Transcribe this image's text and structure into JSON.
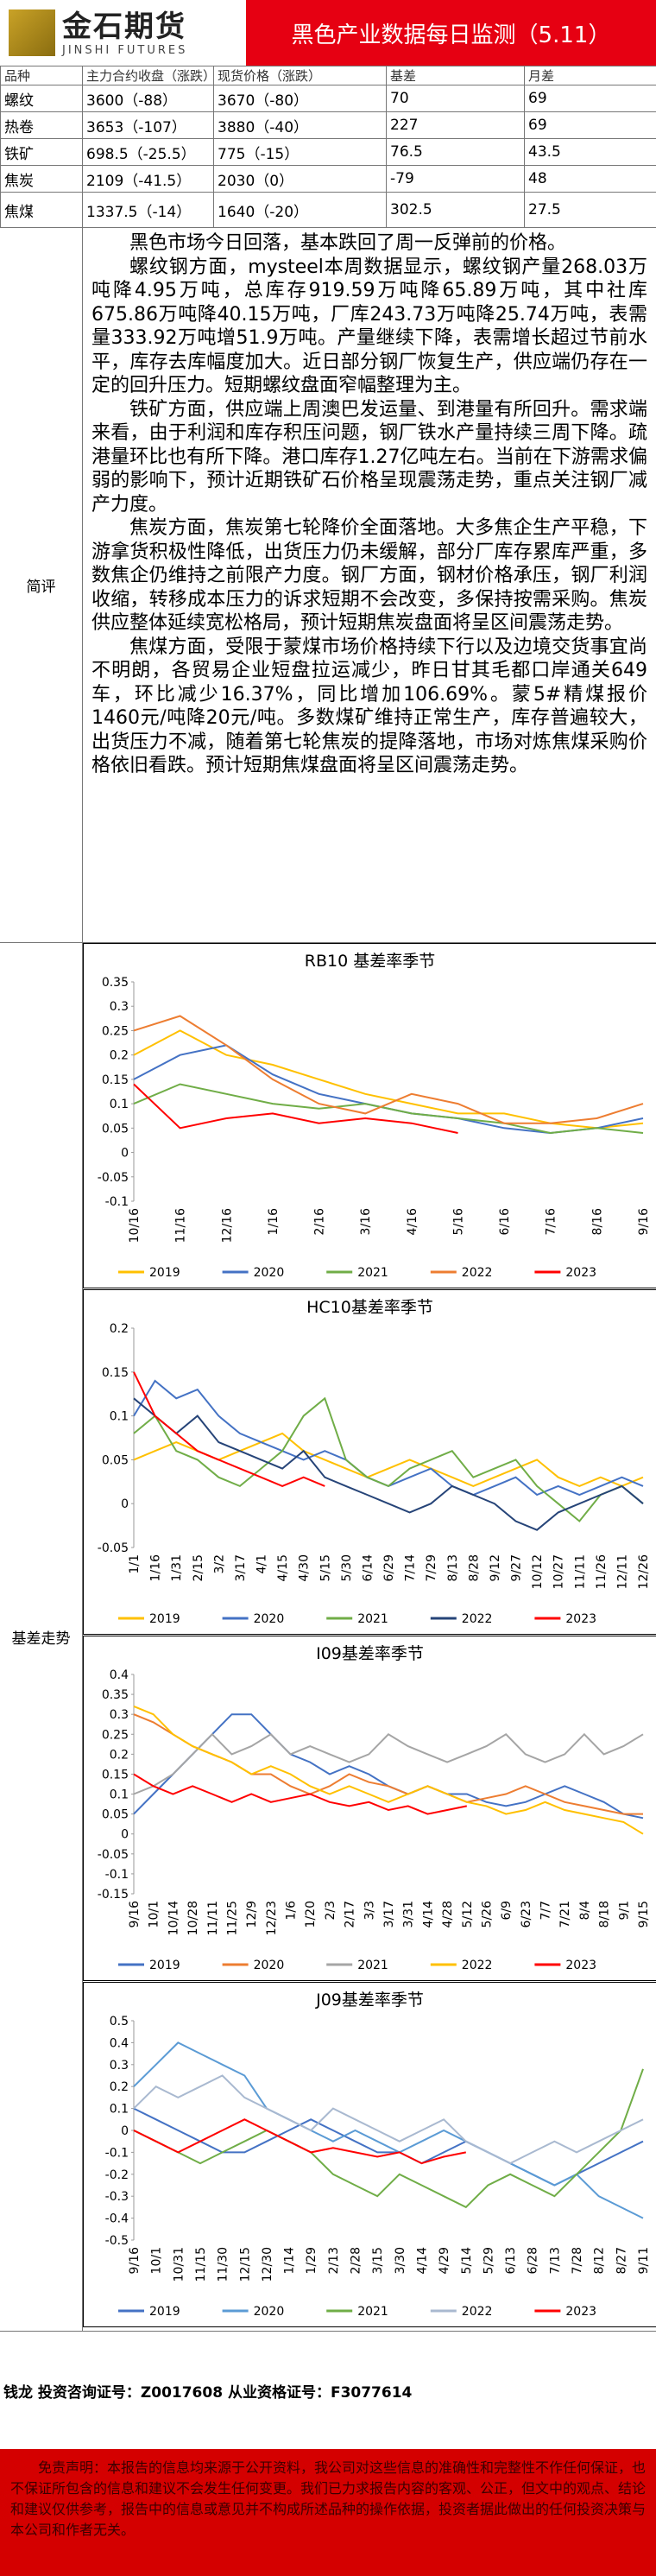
{
  "header": {
    "logo": "金石期货",
    "logo_en": "JINSHI FUTURES",
    "title": "黑色产业数据每日监测（5.11）"
  },
  "table": {
    "columns": [
      "品种",
      "主力合约收盘（涨跌）",
      "现货价格（涨跌）",
      "基差",
      "月差"
    ],
    "rows": [
      [
        "螺纹",
        "3600（-88）",
        "3670（-80）",
        "70",
        "69"
      ],
      [
        "热卷",
        "3653（-107）",
        "3880（-40）",
        "227",
        "69"
      ],
      [
        "铁矿",
        "698.5（-25.5）",
        "775（-15）",
        "76.5",
        "43.5"
      ],
      [
        "焦炭",
        "2109（-41.5）",
        "2030（0）",
        "-79",
        "48"
      ],
      [
        "焦煤",
        "1337.5（-14）",
        "1640（-20）",
        "302.5",
        "27.5"
      ]
    ]
  },
  "comment": {
    "label": "简评",
    "paragraphs": [
      "黑色市场今日回落，基本跌回了周一反弹前的价格。",
      "螺纹钢方面，mysteel本周数据显示，螺纹钢产量268.03万吨降4.95万吨，总库存919.59万吨降65.89万吨，其中社库675.86万吨降40.15万吨，厂库243.73万吨降25.74万吨，表需量333.92万吨增51.9万吨。产量继续下降，表需增长超过节前水平，库存去库幅度加大。近日部分钢厂恢复生产，供应端仍存在一定的回升压力。短期螺纹盘面窄幅整理为主。",
      "铁矿方面，供应端上周澳巴发运量、到港量有所回升。需求端来看，由于利润和库存积压问题，钢厂铁水产量持续三周下降。疏港量环比也有所下降。港口库存1.27亿吨左右。当前在下游需求偏弱的影响下，预计近期铁矿石价格呈现震荡走势，重点关注钢厂减产力度。",
      "焦炭方面，焦炭第七轮降价全面落地。大多焦企生产平稳，下游拿货积极性降低，出货压力仍未缓解，部分厂库存累库严重，多数焦企仍维持之前限产力度。钢厂方面，钢材价格承压，钢厂利润收缩，转移成本压力的诉求短期不会改变，多保持按需采购。焦炭供应整体延续宽松格局，预计短期焦炭盘面将呈区间震荡走势。",
      "焦煤方面，受限于蒙煤市场价格持续下行以及边境交货事宜尚不明朗，各贸易企业短盘拉运减少，昨日甘其毛都口岸通关649车，环比减少16.37%，同比增加106.69%。蒙5#精煤报价1460元/吨降20元/吨。多数煤矿维持正常生产，库存普遍较大，出货压力不减，随着第七轮焦炭的提降落地，市场对炼焦煤采购价格依旧看跌。预计短期焦煤盘面将呈区间震荡走势。"
    ]
  },
  "charts_label": "基差走势",
  "chart_data": [
    {
      "type": "line",
      "title": "RB10 基差率季节",
      "grid": false,
      "categories": [
        "10/16",
        "11/16",
        "12/16",
        "1/16",
        "2/16",
        "3/16",
        "4/16",
        "5/16",
        "6/16",
        "7/16",
        "8/16",
        "9/16"
      ],
      "ylim": [
        -0.1,
        0.35
      ],
      "yticks": [
        0.35,
        0.3,
        0.25,
        0.2,
        0.15,
        0.1,
        0.05,
        0,
        -0.05,
        -0.1
      ],
      "series": [
        {
          "name": "2019",
          "color": "#ffc000",
          "values": [
            0.2,
            0.25,
            0.2,
            0.18,
            0.15,
            0.12,
            0.1,
            0.08,
            0.08,
            0.06,
            0.05,
            0.06
          ]
        },
        {
          "name": "2020",
          "color": "#4472c4",
          "values": [
            0.15,
            0.2,
            0.22,
            0.16,
            0.12,
            0.1,
            0.08,
            0.07,
            0.05,
            0.04,
            0.05,
            0.07
          ]
        },
        {
          "name": "2021",
          "color": "#70ad47",
          "values": [
            0.1,
            0.14,
            0.12,
            0.1,
            0.09,
            0.1,
            0.08,
            0.07,
            0.06,
            0.04,
            0.05,
            0.04
          ]
        },
        {
          "name": "2022",
          "color": "#ed7d31",
          "values": [
            0.25,
            0.28,
            0.22,
            0.15,
            0.1,
            0.08,
            0.12,
            0.1,
            0.06,
            0.06,
            0.07,
            0.1
          ]
        },
        {
          "name": "2023",
          "color": "#ff0000",
          "values": [
            0.14,
            0.05,
            0.07,
            0.08,
            0.06,
            0.07,
            0.06,
            0.04,
            null,
            null,
            null,
            null
          ]
        }
      ]
    },
    {
      "type": "line",
      "title": "HC10基差率季节",
      "grid": false,
      "categories": [
        "1/1",
        "1/16",
        "1/31",
        "2/15",
        "3/2",
        "3/17",
        "4/1",
        "4/15",
        "4/30",
        "5/15",
        "5/30",
        "6/14",
        "6/29",
        "7/14",
        "7/29",
        "8/13",
        "8/28",
        "9/12",
        "9/27",
        "10/12",
        "10/27",
        "11/11",
        "11/26",
        "12/11",
        "12/26"
      ],
      "ylim": [
        -0.05,
        0.2
      ],
      "yticks": [
        0.2,
        0.15,
        0.1,
        0.05,
        0,
        -0.05
      ],
      "series": [
        {
          "name": "2019",
          "color": "#ffc000",
          "values": [
            0.05,
            0.06,
            0.07,
            0.06,
            0.05,
            0.06,
            0.07,
            0.08,
            0.06,
            0.05,
            0.04,
            0.03,
            0.04,
            0.05,
            0.04,
            0.03,
            0.02,
            0.03,
            0.04,
            0.05,
            0.03,
            0.02,
            0.03,
            0.02,
            0.03
          ]
        },
        {
          "name": "2020",
          "color": "#4472c4",
          "values": [
            0.1,
            0.14,
            0.12,
            0.13,
            0.1,
            0.08,
            0.07,
            0.06,
            0.05,
            0.06,
            0.05,
            0.03,
            0.02,
            0.03,
            0.04,
            0.02,
            0.01,
            0.02,
            0.03,
            0.01,
            0.02,
            0.01,
            0.02,
            0.03,
            0.02
          ]
        },
        {
          "name": "2021",
          "color": "#70ad47",
          "values": [
            0.08,
            0.1,
            0.06,
            0.05,
            0.03,
            0.02,
            0.04,
            0.06,
            0.1,
            0.12,
            0.05,
            0.03,
            0.02,
            0.04,
            0.05,
            0.06,
            0.03,
            0.04,
            0.05,
            0.02,
            0,
            -0.02,
            0.01,
            0.02,
            0
          ]
        },
        {
          "name": "2022",
          "color": "#264478",
          "values": [
            0.12,
            0.1,
            0.08,
            0.1,
            0.07,
            0.06,
            0.05,
            0.04,
            0.06,
            0.03,
            0.02,
            0.01,
            0,
            -0.01,
            0,
            0.02,
            0.01,
            0,
            -0.02,
            -0.03,
            -0.01,
            0,
            0.01,
            0.02,
            0
          ]
        },
        {
          "name": "2023",
          "color": "#ff0000",
          "values": [
            0.15,
            0.1,
            0.08,
            0.06,
            0.05,
            0.04,
            0.03,
            0.02,
            0.03,
            0.02,
            null,
            null,
            null,
            null,
            null,
            null,
            null,
            null,
            null,
            null,
            null,
            null,
            null,
            null,
            null
          ]
        }
      ]
    },
    {
      "type": "line",
      "title": "I09基差率季节",
      "grid": false,
      "categories": [
        "9/16",
        "10/1",
        "10/14",
        "10/28",
        "11/11",
        "11/25",
        "12/9",
        "12/23",
        "1/6",
        "1/20",
        "2/3",
        "2/17",
        "3/3",
        "3/17",
        "3/31",
        "4/14",
        "4/28",
        "5/12",
        "5/26",
        "6/9",
        "6/23",
        "7/7",
        "7/21",
        "8/4",
        "8/18",
        "9/1",
        "9/15"
      ],
      "ylim": [
        -0.15,
        0.4
      ],
      "yticks": [
        0.4,
        0.35,
        0.3,
        0.25,
        0.2,
        0.15,
        0.1,
        0.05,
        0,
        -0.05,
        -0.1,
        -0.15
      ],
      "series": [
        {
          "name": "2019",
          "color": "#4472c4",
          "values": [
            0.05,
            0.1,
            0.15,
            0.2,
            0.25,
            0.3,
            0.3,
            0.25,
            0.2,
            0.18,
            0.15,
            0.17,
            0.15,
            0.12,
            0.1,
            0.12,
            0.1,
            0.1,
            0.08,
            0.07,
            0.08,
            0.1,
            0.12,
            0.1,
            0.08,
            0.05,
            0.04
          ]
        },
        {
          "name": "2020",
          "color": "#ed7d31",
          "values": [
            0.3,
            0.28,
            0.25,
            0.22,
            0.2,
            0.18,
            0.15,
            0.15,
            0.12,
            0.1,
            0.12,
            0.15,
            0.13,
            0.12,
            0.1,
            0.12,
            0.1,
            0.08,
            0.09,
            0.1,
            0.12,
            0.1,
            0.08,
            0.07,
            0.06,
            0.05,
            0.05
          ]
        },
        {
          "name": "2021",
          "color": "#a5a5a5",
          "values": [
            0.1,
            0.12,
            0.15,
            0.2,
            0.25,
            0.2,
            0.22,
            0.25,
            0.2,
            0.22,
            0.2,
            0.18,
            0.2,
            0.25,
            0.22,
            0.2,
            0.18,
            0.2,
            0.22,
            0.25,
            0.2,
            0.18,
            0.2,
            0.25,
            0.2,
            0.22,
            0.25
          ]
        },
        {
          "name": "2022",
          "color": "#ffc000",
          "values": [
            0.32,
            0.3,
            0.25,
            0.22,
            0.2,
            0.18,
            0.15,
            0.17,
            0.15,
            0.12,
            0.1,
            0.12,
            0.1,
            0.08,
            0.1,
            0.12,
            0.1,
            0.08,
            0.07,
            0.05,
            0.06,
            0.08,
            0.06,
            0.05,
            0.04,
            0.03,
            0
          ]
        },
        {
          "name": "2023",
          "color": "#ff0000",
          "values": [
            0.15,
            0.12,
            0.1,
            0.12,
            0.1,
            0.08,
            0.1,
            0.08,
            0.09,
            0.1,
            0.08,
            0.07,
            0.08,
            0.06,
            0.07,
            0.05,
            0.06,
            0.07,
            null,
            null,
            null,
            null,
            null,
            null,
            null,
            null,
            null
          ]
        }
      ]
    },
    {
      "type": "line",
      "title": "J09基差率季节",
      "grid": false,
      "categories": [
        "9/16",
        "10/1",
        "10/31",
        "11/15",
        "11/30",
        "12/15",
        "12/30",
        "1/14",
        "1/29",
        "2/13",
        "2/28",
        "3/15",
        "3/30",
        "4/14",
        "4/29",
        "5/14",
        "5/29",
        "6/13",
        "6/28",
        "7/13",
        "7/28",
        "8/12",
        "8/27",
        "9/11"
      ],
      "ylim": [
        -0.5,
        0.5
      ],
      "yticks": [
        0.5,
        0.4,
        0.3,
        0.2,
        0.1,
        0,
        -0.1,
        -0.2,
        -0.3,
        -0.4,
        -0.5
      ],
      "series": [
        {
          "name": "2019",
          "color": "#4472c4",
          "values": [
            0.1,
            0.05,
            0,
            -0.05,
            -0.1,
            -0.1,
            -0.05,
            0,
            0.05,
            0,
            -0.05,
            -0.1,
            -0.1,
            -0.15,
            -0.1,
            -0.05,
            -0.1,
            -0.15,
            -0.2,
            -0.25,
            -0.2,
            -0.15,
            -0.1,
            -0.05
          ]
        },
        {
          "name": "2020",
          "color": "#5b9bd5",
          "values": [
            0.2,
            0.3,
            0.4,
            0.35,
            0.3,
            0.25,
            0.1,
            0.05,
            0,
            -0.05,
            0,
            -0.05,
            -0.1,
            -0.05,
            0,
            -0.05,
            -0.1,
            -0.15,
            -0.2,
            -0.25,
            -0.2,
            -0.3,
            -0.35,
            -0.4
          ]
        },
        {
          "name": "2021",
          "color": "#70ad47",
          "values": [
            0,
            -0.05,
            -0.1,
            -0.15,
            -0.1,
            -0.05,
            0,
            -0.05,
            -0.1,
            -0.2,
            -0.25,
            -0.3,
            -0.2,
            -0.25,
            -0.3,
            -0.35,
            -0.25,
            -0.2,
            -0.25,
            -0.3,
            -0.2,
            -0.1,
            0,
            0.28
          ]
        },
        {
          "name": "2022",
          "color": "#a9b9d0",
          "values": [
            0.1,
            0.2,
            0.15,
            0.2,
            0.25,
            0.15,
            0.1,
            0.05,
            0,
            0.1,
            0.05,
            0,
            -0.05,
            0,
            0.05,
            -0.05,
            -0.1,
            -0.15,
            -0.1,
            -0.05,
            -0.1,
            -0.05,
            0,
            0.05
          ]
        },
        {
          "name": "2023",
          "color": "#ff0000",
          "values": [
            0,
            -0.05,
            -0.1,
            -0.05,
            0,
            0.05,
            0,
            -0.05,
            -0.1,
            -0.08,
            -0.1,
            -0.12,
            -0.1,
            -0.15,
            -0.12,
            -0.1,
            null,
            null,
            null,
            null,
            null,
            null,
            null,
            null
          ]
        }
      ]
    }
  ],
  "footer": {
    "contact": "钱龙 投资咨询证号：Z0017608 从业资格证号：F3077614",
    "disclaimer": "免责声明：本报告的信息均来源于公开资料，我公司对这些信息的准确性和完整性不作任何保证，也不保证所包含的信息和建议不会发生任何变更。我们已力求报告内容的客观、公正，但文中的观点、结论和建议仅供参考，报告中的信息或意见并不构成所述品种的操作依据，投资者据此做出的任何投资决策与本公司和作者无关。"
  }
}
